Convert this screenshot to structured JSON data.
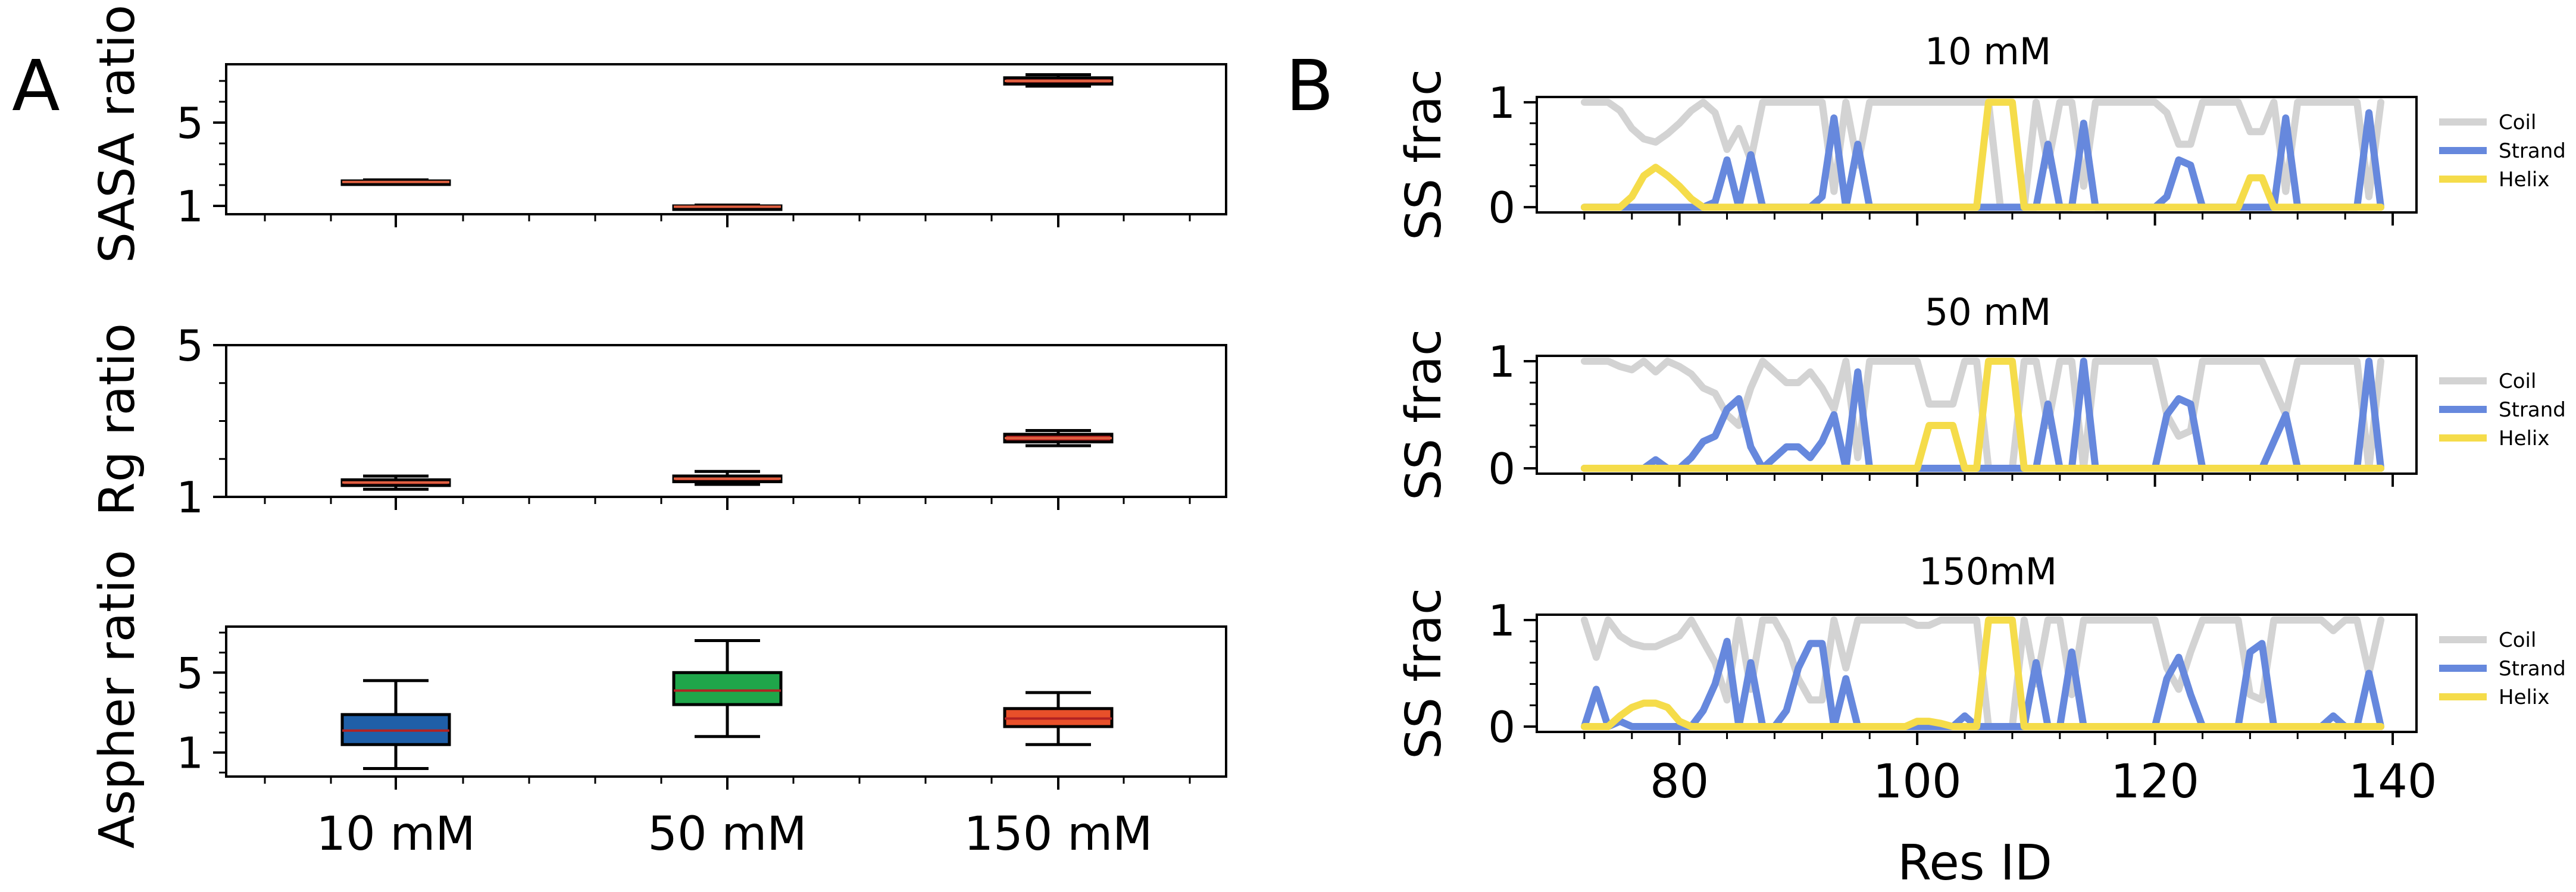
{
  "figure": {
    "panel_a_label": "A",
    "panel_b_label": "B"
  },
  "chart_data": [
    {
      "id": "sasa",
      "type": "box",
      "ylabel": "SASA ratio",
      "categories": [
        "10 mM",
        "50 mM",
        "150 mM"
      ],
      "yticks": [
        1,
        5
      ],
      "ytick_labels": [
        "1",
        "5"
      ],
      "ylim": [
        0.6,
        7.8
      ],
      "box_color": "#b22222",
      "boxes": [
        {
          "category": "10 mM",
          "whisker_low": 2.05,
          "q1": 2.1,
          "median": 2.15,
          "q3": 2.2,
          "whisker_high": 2.25
        },
        {
          "category": "50 mM",
          "whisker_low": 0.88,
          "q1": 0.92,
          "median": 0.96,
          "q3": 1.0,
          "whisker_high": 1.04
        },
        {
          "category": "150 mM",
          "whisker_low": 6.75,
          "q1": 6.85,
          "median": 7.0,
          "q3": 7.15,
          "whisker_high": 7.3
        }
      ]
    },
    {
      "id": "rg",
      "type": "box",
      "ylabel": "Rg ratio",
      "categories": [
        "10 mM",
        "50 mM",
        "150 mM"
      ],
      "yticks": [
        1,
        5
      ],
      "ytick_labels": [
        "1",
        "5"
      ],
      "ylim": [
        1,
        5
      ],
      "box_color": "#b22222",
      "boxes": [
        {
          "category": "10 mM",
          "whisker_low": 1.2,
          "q1": 1.3,
          "median": 1.38,
          "q3": 1.45,
          "whisker_high": 1.55
        },
        {
          "category": "50 mM",
          "whisker_low": 1.33,
          "q1": 1.4,
          "median": 1.48,
          "q3": 1.55,
          "whisker_high": 1.67
        },
        {
          "category": "150 mM",
          "whisker_low": 2.35,
          "q1": 2.45,
          "median": 2.55,
          "q3": 2.65,
          "whisker_high": 2.75
        }
      ]
    },
    {
      "id": "aspher",
      "type": "box",
      "ylabel": "Aspher ratio",
      "categories": [
        "10 mM",
        "50 mM",
        "150 mM"
      ],
      "yticks": [
        1,
        5
      ],
      "ytick_labels": [
        "1",
        "5"
      ],
      "ylim": [
        -0.2,
        7.3
      ],
      "boxes": [
        {
          "category": "10 mM",
          "whisker_low": 0.2,
          "q1": 1.4,
          "median": 2.1,
          "q3": 2.9,
          "whisker_high": 4.6,
          "fill": "#1f5fa8",
          "median_color": "#b22222"
        },
        {
          "category": "50 mM",
          "whisker_low": 1.8,
          "q1": 3.4,
          "median": 4.1,
          "q3": 5.0,
          "whisker_high": 6.6,
          "fill": "#1fa64a",
          "median_color": "#b22222"
        },
        {
          "category": "150 mM",
          "whisker_low": 1.4,
          "q1": 2.3,
          "median": 2.7,
          "q3": 3.2,
          "whisker_high": 4.0,
          "fill": "#e8502a",
          "median_color": "#b22222"
        }
      ]
    },
    {
      "id": "ss-10",
      "type": "line",
      "title": "10 mM",
      "ylabel": "SS frac",
      "xlim": [
        68,
        142
      ],
      "ylim": [
        -0.05,
        1.05
      ],
      "yticks": [
        0,
        1
      ],
      "ytick_labels": [
        "0",
        "1"
      ],
      "x": [
        72,
        73,
        74,
        75,
        76,
        77,
        78,
        79,
        80,
        81,
        82,
        83,
        84,
        85,
        86,
        87,
        88,
        89,
        90,
        91,
        92,
        93,
        94,
        95,
        96,
        97,
        98,
        99,
        100,
        101,
        102,
        103,
        104,
        105,
        106,
        107,
        108,
        109,
        110,
        111,
        112,
        113,
        114,
        115,
        116,
        117,
        118,
        119,
        120,
        121,
        122,
        123,
        124,
        125,
        126,
        127,
        128,
        129,
        130,
        131,
        132,
        133,
        134,
        135,
        136,
        137,
        138,
        139
      ],
      "series": [
        {
          "name": "Coil",
          "color": "#d3d3d3",
          "values": [
            1,
            1,
            1,
            0.92,
            0.75,
            0.65,
            0.62,
            0.7,
            0.8,
            0.92,
            1,
            0.9,
            0.55,
            0.75,
            0.45,
            1,
            1,
            1,
            1,
            1,
            1,
            0.15,
            1,
            0.4,
            1,
            1,
            1,
            1,
            1,
            1,
            1,
            1,
            1,
            1,
            1,
            0,
            0,
            0,
            1,
            0.4,
            1,
            1,
            0.2,
            1,
            1,
            1,
            1,
            1,
            1,
            0.9,
            0.6,
            0.6,
            1,
            1,
            1,
            1,
            0.72,
            0.72,
            1,
            0.15,
            1,
            1,
            1,
            1,
            1,
            1,
            0.1,
            1
          ]
        },
        {
          "name": "Strand",
          "color": "#6688dd",
          "values": [
            0,
            0,
            0,
            0,
            0,
            0,
            0,
            0,
            0,
            0,
            0,
            0.05,
            0.45,
            0,
            0.5,
            0,
            0,
            0,
            0,
            0,
            0.1,
            0.85,
            0,
            0.6,
            0,
            0,
            0,
            0,
            0,
            0,
            0,
            0,
            0,
            0,
            0,
            0,
            0,
            0,
            0,
            0.6,
            0,
            0,
            0.8,
            0,
            0,
            0,
            0,
            0,
            0,
            0.1,
            0.45,
            0.4,
            0,
            0,
            0,
            0,
            0,
            0,
            0,
            0.85,
            0,
            0,
            0,
            0,
            0,
            0,
            0.9,
            0
          ]
        },
        {
          "name": "Helix",
          "color": "#f5dc4a",
          "values": [
            0,
            0,
            0,
            0,
            0.1,
            0.3,
            0.38,
            0.3,
            0.2,
            0.08,
            0,
            0,
            0,
            0,
            0,
            0,
            0,
            0,
            0,
            0,
            0,
            0,
            0,
            0,
            0,
            0,
            0,
            0,
            0,
            0,
            0,
            0,
            0,
            0,
            1,
            1,
            1,
            0,
            0,
            0,
            0,
            0,
            0,
            0,
            0,
            0,
            0,
            0,
            0,
            0,
            0,
            0,
            0,
            0,
            0,
            0,
            0.28,
            0.28,
            0,
            0,
            0,
            0,
            0,
            0,
            0,
            0,
            0,
            0
          ]
        }
      ],
      "legend": [
        "Coil",
        "Strand",
        "Helix"
      ]
    },
    {
      "id": "ss-50",
      "type": "line",
      "title": "50 mM",
      "ylabel": "SS frac",
      "xlim": [
        68,
        142
      ],
      "ylim": [
        -0.05,
        1.05
      ],
      "yticks": [
        0,
        1
      ],
      "ytick_labels": [
        "0",
        "1"
      ],
      "x": [
        72,
        73,
        74,
        75,
        76,
        77,
        78,
        79,
        80,
        81,
        82,
        83,
        84,
        85,
        86,
        87,
        88,
        89,
        90,
        91,
        92,
        93,
        94,
        95,
        96,
        97,
        98,
        99,
        100,
        101,
        102,
        103,
        104,
        105,
        106,
        107,
        108,
        109,
        110,
        111,
        112,
        113,
        114,
        115,
        116,
        117,
        118,
        119,
        120,
        121,
        122,
        123,
        124,
        125,
        126,
        127,
        128,
        129,
        130,
        131,
        132,
        133,
        134,
        135,
        136,
        137,
        138,
        139
      ],
      "series": [
        {
          "name": "Coil",
          "color": "#d3d3d3",
          "values": [
            1,
            1,
            1,
            0.95,
            0.92,
            1,
            0.9,
            1,
            0.95,
            0.88,
            0.75,
            0.7,
            0.5,
            0.4,
            0.75,
            1,
            0.9,
            0.8,
            0.8,
            0.9,
            0.75,
            0.55,
            1,
            0.1,
            1,
            1,
            1,
            1,
            1,
            0.6,
            0.6,
            0.6,
            1,
            1,
            0,
            0,
            0,
            1,
            1,
            0.4,
            1,
            1,
            0,
            1,
            1,
            1,
            1,
            1,
            1,
            0.5,
            0.3,
            0.35,
            1,
            1,
            1,
            1,
            1,
            1,
            0.75,
            0.5,
            1,
            1,
            1,
            1,
            1,
            1,
            0,
            1
          ]
        },
        {
          "name": "Strand",
          "color": "#6688dd",
          "values": [
            0,
            0,
            0,
            0,
            0,
            0,
            0.08,
            0,
            0,
            0.1,
            0.25,
            0.3,
            0.55,
            0.65,
            0.2,
            0,
            0.1,
            0.2,
            0.2,
            0.1,
            0.25,
            0.5,
            0,
            0.9,
            0,
            0,
            0,
            0,
            0,
            0,
            0,
            0,
            0,
            0,
            0,
            0,
            0,
            0,
            0,
            0.6,
            0,
            0,
            1,
            0,
            0,
            0,
            0,
            0,
            0,
            0.5,
            0.65,
            0.6,
            0,
            0,
            0,
            0,
            0,
            0,
            0.25,
            0.5,
            0,
            0,
            0,
            0,
            0,
            0,
            1,
            0
          ]
        },
        {
          "name": "Helix",
          "color": "#f5dc4a",
          "values": [
            0,
            0,
            0,
            0,
            0,
            0,
            0,
            0,
            0,
            0,
            0,
            0,
            0,
            0,
            0,
            0,
            0,
            0,
            0,
            0,
            0,
            0,
            0,
            0,
            0,
            0,
            0,
            0,
            0,
            0.4,
            0.4,
            0.4,
            0,
            0,
            1,
            1,
            1,
            0,
            0,
            0,
            0,
            0,
            0,
            0,
            0,
            0,
            0,
            0,
            0,
            0,
            0,
            0,
            0,
            0,
            0,
            0,
            0,
            0,
            0,
            0,
            0,
            0,
            0,
            0,
            0,
            0,
            0,
            0
          ]
        }
      ],
      "legend": [
        "Coil",
        "Strand",
        "Helix"
      ]
    },
    {
      "id": "ss-150",
      "type": "line",
      "title": "150mM",
      "ylabel": "SS frac",
      "xlim": [
        68,
        142
      ],
      "ylim": [
        -0.05,
        1.05
      ],
      "yticks": [
        0,
        1
      ],
      "ytick_labels": [
        "0",
        "1"
      ],
      "xticks": [
        80,
        100,
        120,
        140
      ],
      "xtick_labels": [
        "80",
        "100",
        "120",
        "140"
      ],
      "xlabel": "Res ID",
      "x": [
        72,
        73,
        74,
        75,
        76,
        77,
        78,
        79,
        80,
        81,
        82,
        83,
        84,
        85,
        86,
        87,
        88,
        89,
        90,
        91,
        92,
        93,
        94,
        95,
        96,
        97,
        98,
        99,
        100,
        101,
        102,
        103,
        104,
        105,
        106,
        107,
        108,
        109,
        110,
        111,
        112,
        113,
        114,
        115,
        116,
        117,
        118,
        119,
        120,
        121,
        122,
        123,
        124,
        125,
        126,
        127,
        128,
        129,
        130,
        131,
        132,
        133,
        134,
        135,
        136,
        137,
        138,
        139
      ],
      "series": [
        {
          "name": "Coil",
          "color": "#d3d3d3",
          "values": [
            1,
            0.65,
            1,
            0.85,
            0.78,
            0.75,
            0.75,
            0.8,
            0.85,
            1,
            0.8,
            0.6,
            0.25,
            1,
            0.35,
            1,
            1,
            0.8,
            0.45,
            0.25,
            0.25,
            1,
            0.55,
            1,
            1,
            1,
            1,
            1,
            0.95,
            0.95,
            1,
            1,
            1,
            1,
            0,
            0,
            0,
            1,
            0.4,
            1,
            1,
            0.3,
            1,
            1,
            1,
            1,
            1,
            1,
            1,
            0.55,
            0.35,
            0.7,
            1,
            1,
            1,
            1,
            0.3,
            0.25,
            1,
            1,
            1,
            1,
            1,
            0.9,
            1,
            1,
            0.5,
            1
          ]
        },
        {
          "name": "Strand",
          "color": "#6688dd",
          "values": [
            0,
            0.35,
            0,
            0.05,
            0,
            0,
            0,
            0,
            0,
            0,
            0.15,
            0.4,
            0.8,
            0,
            0.6,
            0,
            0,
            0.15,
            0.55,
            0.78,
            0.78,
            0,
            0.45,
            0,
            0,
            0,
            0,
            0,
            0,
            0,
            0,
            0,
            0.1,
            0,
            0,
            0,
            0,
            0,
            0.6,
            0,
            0,
            0.7,
            0,
            0,
            0,
            0,
            0,
            0,
            0,
            0.45,
            0.65,
            0.3,
            0,
            0,
            0,
            0,
            0.7,
            0.78,
            0,
            0,
            0,
            0,
            0,
            0.1,
            0,
            0,
            0.5,
            0
          ]
        },
        {
          "name": "Helix",
          "color": "#f5dc4a",
          "values": [
            0,
            0,
            0,
            0.1,
            0.18,
            0.22,
            0.22,
            0.18,
            0.05,
            0,
            0,
            0,
            0,
            0,
            0,
            0,
            0,
            0,
            0,
            0,
            0,
            0,
            0,
            0,
            0,
            0,
            0,
            0,
            0.05,
            0.05,
            0.03,
            0,
            0,
            0,
            1,
            1,
            1,
            0,
            0,
            0,
            0,
            0,
            0,
            0,
            0,
            0,
            0,
            0,
            0,
            0,
            0,
            0,
            0,
            0,
            0,
            0,
            0,
            0,
            0,
            0,
            0,
            0,
            0,
            0,
            0,
            0,
            0,
            0
          ]
        }
      ],
      "legend": [
        "Coil",
        "Strand",
        "Helix"
      ]
    }
  ]
}
